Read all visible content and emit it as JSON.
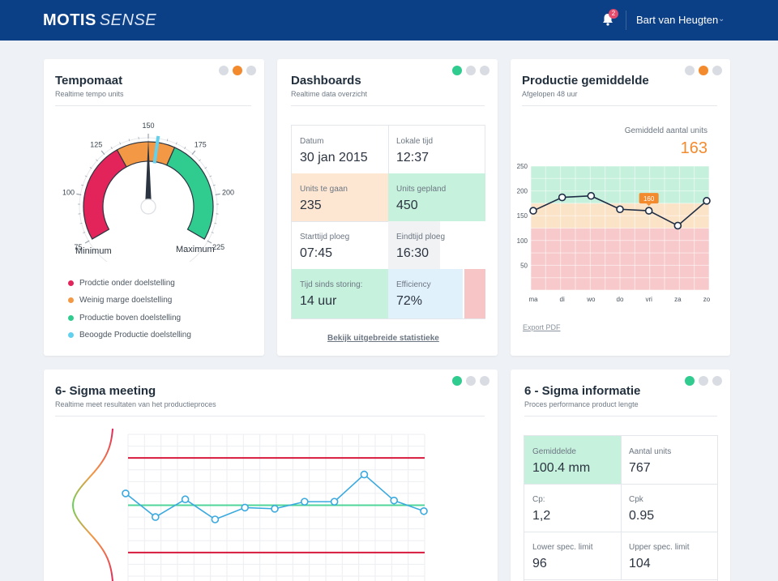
{
  "header": {
    "logo_bold": "MOTIS",
    "logo_light": "SENSE",
    "notifications_count": "2",
    "user_name": "Bart van Heugten"
  },
  "colors": {
    "brand": "#0b3f86",
    "red": "#e2245a",
    "orange": "#f39845",
    "green": "#2fcb8f",
    "light_blue": "#62d1ee",
    "accent_orange": "#f38a2e"
  },
  "tempomaat": {
    "title": "Tempomaat",
    "subtitle": "Realtime tempo units",
    "dots": [
      "inactive",
      "orange",
      "inactive"
    ],
    "gauge": {
      "min": 75,
      "max": 225,
      "value": 150,
      "target": 155,
      "ticks": [
        "75",
        "100",
        "125",
        "150",
        "175",
        "200",
        "225"
      ],
      "min_label": "Minimum",
      "max_label": "Maximum"
    },
    "legend": [
      {
        "label": "Prodctie onder doelstelling",
        "color": "#e2245a"
      },
      {
        "label": "Weinig marge doelstelling",
        "color": "#f39845"
      },
      {
        "label": "Productie boven doelstelling",
        "color": "#2fcb8f"
      },
      {
        "label": "Beoogde Productie doelstelling",
        "color": "#62d1ee"
      }
    ]
  },
  "dashboards": {
    "title": "Dashboards",
    "subtitle": "Realtime data overzicht",
    "dots": [
      "green",
      "inactive",
      "inactive"
    ],
    "cells": [
      {
        "label": "Datum",
        "value": "30 jan 2015"
      },
      {
        "label": "Lokale tijd",
        "value": "12:37"
      },
      {
        "label": "Units te gaan",
        "value": "235"
      },
      {
        "label": "Units gepland",
        "value": "450"
      },
      {
        "label": "Starttijd ploeg",
        "value": "07:45"
      },
      {
        "label": "Eindtijd ploeg",
        "value": "16:30"
      },
      {
        "label": "Tijd sinds storing:",
        "value": "14 uur"
      },
      {
        "label": "Efficiency",
        "value": "72%"
      }
    ],
    "link": "Bekijk uitgebreide statistieke"
  },
  "productie": {
    "title": "Productie gemiddelde",
    "subtitle": "Afgelopen 48 uur",
    "dots": [
      "inactive",
      "orange",
      "inactive"
    ],
    "avg_label": "Gemiddeld aantal units",
    "avg_value": "163",
    "tooltip": "160",
    "export": "Export PDF"
  },
  "sigma_meeting": {
    "title": "6- Sigma meeting",
    "subtitle": "Realtime meet resultaten van het productieproces",
    "dots": [
      "green",
      "inactive",
      "inactive"
    ]
  },
  "sigma_info": {
    "title": "6 - Sigma informatie",
    "subtitle": "Proces performance product lengte",
    "dots": [
      "green",
      "inactive",
      "inactive"
    ],
    "cells": [
      {
        "label": "Gemiddelde",
        "value": "100.4 mm"
      },
      {
        "label": "Aantal units",
        "value": "767"
      },
      {
        "label": "Cp:",
        "value": "1,2"
      },
      {
        "label": "Cpk",
        "value": "0.95"
      },
      {
        "label": "Lower spec. limit",
        "value": "96"
      },
      {
        "label": "Upper spec. limit",
        "value": "104"
      }
    ]
  },
  "chart_data": [
    {
      "type": "line",
      "title": "Productie gemiddelde",
      "categories": [
        "ma",
        "di",
        "wo",
        "do",
        "vri",
        "za",
        "zo"
      ],
      "x": [
        0,
        1,
        2,
        3,
        4,
        4.6,
        5,
        6
      ],
      "series": [
        {
          "name": "Productie",
          "values": [
            160,
            187,
            190,
            163,
            160,
            160,
            130,
            180
          ]
        }
      ],
      "points": [
        {
          "x": 0,
          "y": 160
        },
        {
          "x": 1,
          "y": 187
        },
        {
          "x": 2,
          "y": 190
        },
        {
          "x": 3,
          "y": 163
        },
        {
          "x": 4,
          "y": 160
        },
        {
          "x": 5,
          "y": 130
        },
        {
          "x": 6,
          "y": 180
        }
      ],
      "yticks": [
        "250",
        "200",
        "150",
        "100",
        "50"
      ],
      "ylim": [
        0,
        250
      ],
      "bands": [
        {
          "from": 0,
          "to": 125,
          "color": "#f7c9cb"
        },
        {
          "from": 125,
          "to": 175,
          "color": "#fbe3c7"
        },
        {
          "from": 175,
          "to": 250,
          "color": "#c4f0dc"
        }
      ],
      "annotation": {
        "x": 4,
        "y": 160,
        "label": "160"
      },
      "grid": true
    },
    {
      "type": "line",
      "title": "6- Sigma meeting",
      "x": [
        0,
        1,
        2,
        3,
        4,
        5,
        6,
        7,
        8,
        9,
        10
      ],
      "series": [
        {
          "name": "Meting",
          "values": [
            101,
            99,
            100.5,
            98.8,
            99.8,
            99.7,
            100.3,
            100.3,
            102.6,
            100.4,
            99.5
          ]
        }
      ],
      "upper_limit": 104,
      "lower_limit": 96,
      "mean": 100,
      "ylim": [
        94,
        106
      ],
      "grid": true
    }
  ]
}
